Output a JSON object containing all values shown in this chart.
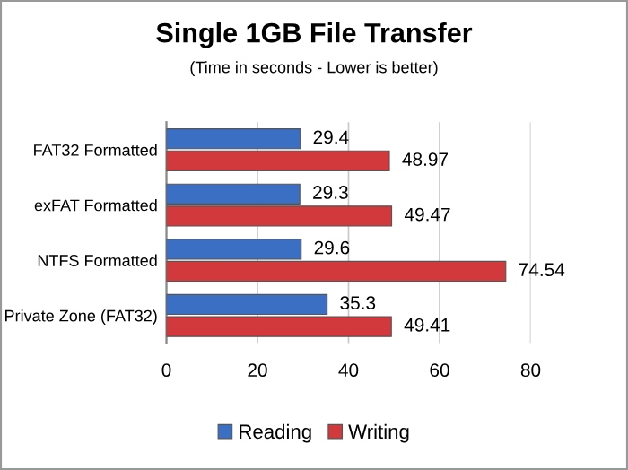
{
  "chart_data": {
    "type": "bar",
    "orientation": "horizontal",
    "title": "Single 1GB File Transfer",
    "subtitle": "(Time in seconds - Lower is better)",
    "categories": [
      "FAT32 Formatted",
      "exFAT Formatted",
      "NTFS Formatted",
      "Private Zone (FAT32)"
    ],
    "series": [
      {
        "name": "Reading",
        "color": "#3a6fc4",
        "values": [
          29.4,
          29.3,
          29.6,
          35.3
        ]
      },
      {
        "name": "Writing",
        "color": "#d2393c",
        "values": [
          48.97,
          49.47,
          74.54,
          49.41
        ]
      }
    ],
    "xlim": [
      0,
      80
    ],
    "xticks": [
      0,
      20,
      40,
      60,
      80
    ],
    "grid": "x",
    "legend": "bottom",
    "data_labels": true
  }
}
